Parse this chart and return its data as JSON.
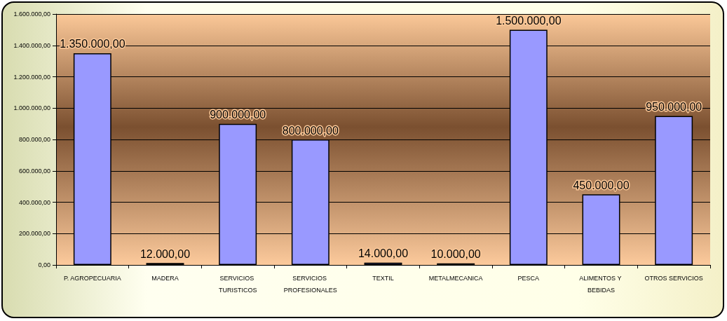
{
  "chart_data": {
    "type": "bar",
    "categories": [
      "P. AGROPECUARIA",
      "MADERA",
      "SERVICIOS TURISTICOS",
      "SERVICIOS PROFESIONALES",
      "TEXTIL",
      "METALMECANICA",
      "PESCA",
      "ALIMENTOS Y BEBIDAS",
      "OTROS SERVICIOS"
    ],
    "values": [
      1350000,
      12000,
      900000,
      800000,
      14000,
      10000,
      1500000,
      450000,
      950000
    ],
    "value_labels": [
      "1.350.000,00",
      "12.000,00",
      "900.000,00",
      "800.000,00",
      "14.000,00",
      "10.000,00",
      "1.500.000,00",
      "450.000,00",
      "950.000,00"
    ],
    "color": "#9999ff",
    "ylim": [
      0,
      1600000
    ],
    "yticks": [
      {
        "value": 0,
        "label": "0,00"
      },
      {
        "value": 200000,
        "label": "200.000,00"
      },
      {
        "value": 400000,
        "label": "400.000,00"
      },
      {
        "value": 600000,
        "label": "600.000,00"
      },
      {
        "value": 800000,
        "label": "800.000,00"
      },
      {
        "value": 1000000,
        "label": "1.000.000,00"
      },
      {
        "value": 1200000,
        "label": "1.200.000,00"
      },
      {
        "value": 1400000,
        "label": "1.400.000,00"
      },
      {
        "value": 1600000,
        "label": "1.600.000,00"
      }
    ],
    "grid": "y"
  }
}
